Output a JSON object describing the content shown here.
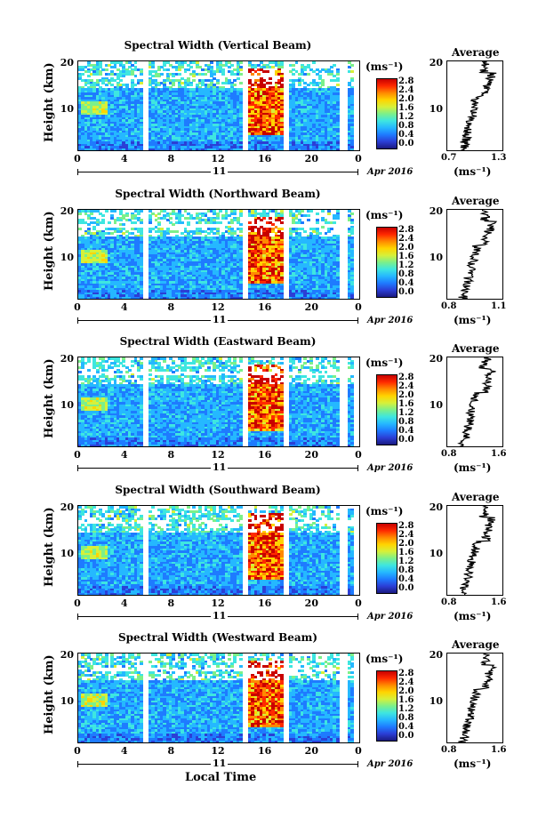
{
  "chart_data": [
    {
      "type": "heatmap",
      "title": "Spectral Width (Vertical Beam)",
      "ylabel": "Height (km)",
      "yticks": [
        "20",
        "10"
      ],
      "xticks": [
        "0",
        "4",
        "8",
        "12",
        "16",
        "20",
        "0"
      ],
      "day_label": "11",
      "date_label": "Apr 2016",
      "colorbar_unit": "(ms⁻¹)",
      "colorbar_ticks": [
        "2.8",
        "2.4",
        "2.0",
        "1.6",
        "1.2",
        "0.8",
        "0.4",
        "0.0"
      ],
      "xlim": [
        0,
        24
      ],
      "ylim": [
        1.5,
        20.5
      ],
      "average": {
        "title": "Average",
        "yticks": [
          "20",
          "10"
        ],
        "xticks": [
          "0.7",
          "1.3"
        ],
        "xlim": [
          0.7,
          1.3
        ],
        "unit": "(ms⁻¹)"
      }
    },
    {
      "type": "heatmap",
      "title": "Spectral Width (Northward Beam)",
      "ylabel": "Height (km)",
      "yticks": [
        "20",
        "10"
      ],
      "xticks": [
        "0",
        "4",
        "8",
        "12",
        "16",
        "20",
        "0"
      ],
      "day_label": "11",
      "date_label": "Apr 2016",
      "colorbar_unit": "(ms⁻¹)",
      "colorbar_ticks": [
        "2.8",
        "2.4",
        "2.0",
        "1.6",
        "1.2",
        "0.8",
        "0.4",
        "0.0"
      ],
      "xlim": [
        0,
        24
      ],
      "ylim": [
        1.5,
        20.5
      ],
      "average": {
        "title": "Average",
        "yticks": [
          "20",
          "10"
        ],
        "xticks": [
          "0.8",
          "1.1"
        ],
        "xlim": [
          0.8,
          1.1
        ],
        "unit": "(ms⁻¹)"
      }
    },
    {
      "type": "heatmap",
      "title": "Spectral Width (Eastward Beam)",
      "ylabel": "Height (km)",
      "yticks": [
        "20",
        "10"
      ],
      "xticks": [
        "0",
        "4",
        "8",
        "12",
        "16",
        "20",
        "0"
      ],
      "day_label": "11",
      "date_label": "Apr 2016",
      "colorbar_unit": "(ms⁻¹)",
      "colorbar_ticks": [
        "2.8",
        "2.4",
        "2.0",
        "1.6",
        "1.2",
        "0.8",
        "0.4",
        "0.0"
      ],
      "xlim": [
        0,
        24
      ],
      "ylim": [
        1.5,
        20.5
      ],
      "average": {
        "title": "Average",
        "yticks": [
          "20",
          "10"
        ],
        "xticks": [
          "0.8",
          "1.6"
        ],
        "xlim": [
          0.8,
          1.6
        ],
        "unit": "(ms⁻¹)"
      }
    },
    {
      "type": "heatmap",
      "title": "Spectral Width (Southward Beam)",
      "ylabel": "Height (km)",
      "yticks": [
        "20",
        "10"
      ],
      "xticks": [
        "0",
        "4",
        "8",
        "12",
        "16",
        "20",
        "0"
      ],
      "day_label": "11",
      "date_label": "Apr 2016",
      "colorbar_unit": "(ms⁻¹)",
      "colorbar_ticks": [
        "2.8",
        "2.4",
        "2.0",
        "1.6",
        "1.2",
        "0.8",
        "0.4",
        "0.0"
      ],
      "xlim": [
        0,
        24
      ],
      "ylim": [
        1.5,
        20.5
      ],
      "average": {
        "title": "Average",
        "yticks": [
          "20",
          "10"
        ],
        "xticks": [
          "0.8",
          "1.6"
        ],
        "xlim": [
          0.8,
          1.6
        ],
        "unit": "(ms⁻¹)"
      }
    },
    {
      "type": "heatmap",
      "title": "Spectral Width (Westward Beam)",
      "ylabel": "Height (km)",
      "yticks": [
        "20",
        "10"
      ],
      "xticks": [
        "0",
        "4",
        "8",
        "12",
        "16",
        "20",
        "0"
      ],
      "day_label": "11",
      "date_label": "Apr 2016",
      "colorbar_unit": "(ms⁻¹)",
      "colorbar_ticks": [
        "2.8",
        "2.4",
        "2.0",
        "1.6",
        "1.2",
        "0.8",
        "0.4",
        "0.0"
      ],
      "xlim": [
        0,
        24
      ],
      "ylim": [
        1.5,
        20.5
      ],
      "average": {
        "title": "Average",
        "yticks": [
          "20",
          "10"
        ],
        "xticks": [
          "0.8",
          "1.6"
        ],
        "xlim": [
          0.8,
          1.6
        ],
        "unit": "(ms⁻¹)"
      }
    }
  ],
  "footer": {
    "xaxis_title": "Local Time"
  },
  "colors": {
    "colormap": [
      "#1a1a80",
      "#2b3fd6",
      "#1e7bff",
      "#25b8ff",
      "#3ee6e0",
      "#7cf08a",
      "#d6f03a",
      "#ffd400",
      "#ff8a00",
      "#ff2a00",
      "#c80000"
    ]
  }
}
